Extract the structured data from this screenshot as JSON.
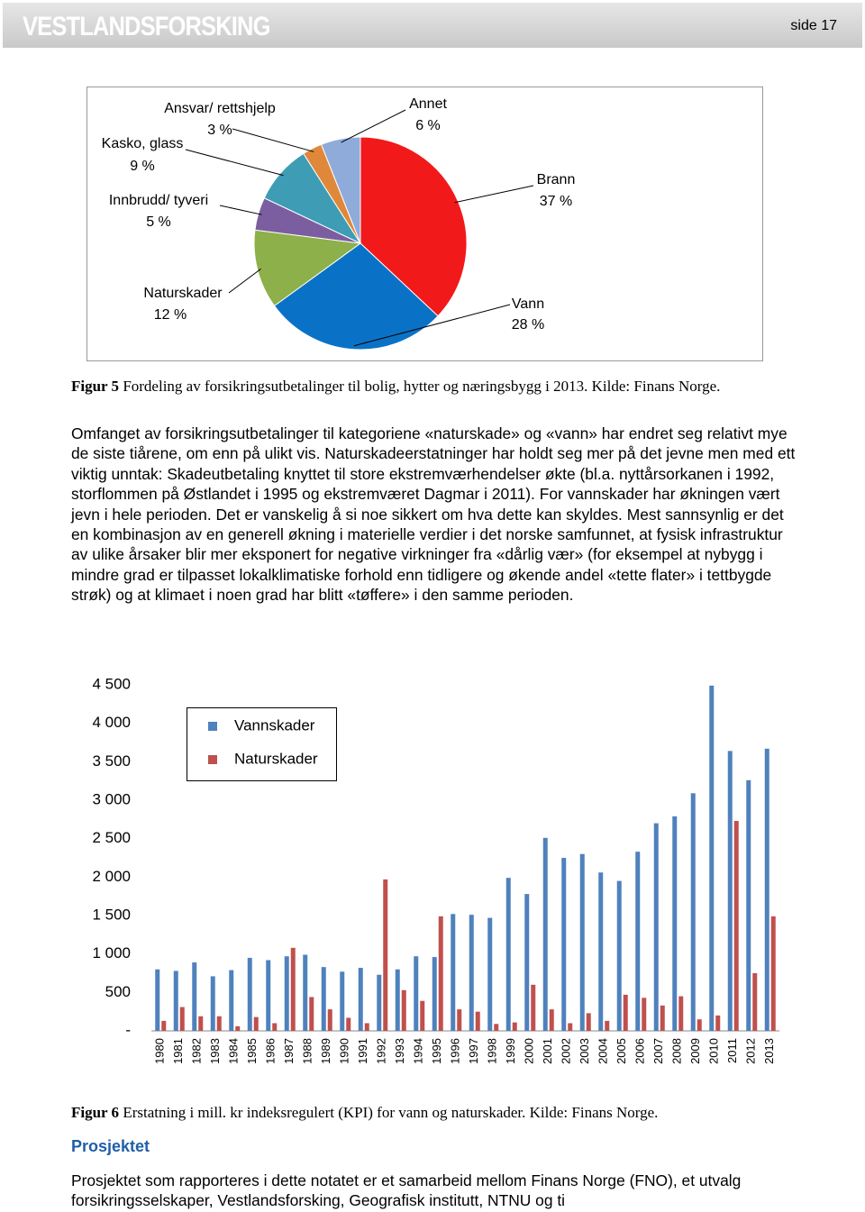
{
  "header": {
    "logo": "VESTLANDSFORSKING",
    "page": "side 17"
  },
  "chart_data": [
    {
      "type": "pie",
      "categories": [
        "Brann",
        "Vann",
        "Naturskader",
        "Innbrudd/ tyveri",
        "Kasko, glass",
        "Ansvar/ rettshjelp",
        "Annet"
      ],
      "values": [
        37,
        28,
        12,
        5,
        9,
        3,
        6
      ],
      "value_labels": [
        "37 %",
        "28 %",
        "12 %",
        "5 %",
        "9 %",
        "3 %",
        "6 %"
      ],
      "colors": [
        "#f2191b",
        "#0a72c6",
        "#8db04a",
        "#7b5e9f",
        "#3e9cb5",
        "#e0883a",
        "#8fabd9"
      ]
    },
    {
      "type": "bar",
      "categories": [
        "1980",
        "1981",
        "1982",
        "1983",
        "1984",
        "1985",
        "1986",
        "1987",
        "1988",
        "1989",
        "1990",
        "1991",
        "1992",
        "1993",
        "1994",
        "1995",
        "1996",
        "1997",
        "1998",
        "1999",
        "2000",
        "2001",
        "2002",
        "2003",
        "2004",
        "2005",
        "2006",
        "2007",
        "2008",
        "2009",
        "2010",
        "2011",
        "2012",
        "2013"
      ],
      "series": [
        {
          "name": "Vannskader",
          "color": "#4f81bd",
          "values": [
            800,
            780,
            890,
            710,
            790,
            950,
            920,
            970,
            990,
            830,
            770,
            820,
            730,
            800,
            970,
            960,
            1520,
            1510,
            1470,
            1990,
            1780,
            2510,
            2250,
            2300,
            2060,
            1950,
            2330,
            2700,
            2790,
            3090,
            4490,
            3640,
            3260,
            3670
          ]
        },
        {
          "name": "Naturskader",
          "color": "#c0504d",
          "values": [
            130,
            310,
            190,
            190,
            60,
            180,
            100,
            1080,
            440,
            280,
            170,
            100,
            1970,
            530,
            390,
            1490,
            280,
            250,
            90,
            110,
            600,
            280,
            100,
            230,
            130,
            470,
            430,
            330,
            450,
            150,
            200,
            2730,
            750,
            1490
          ]
        }
      ],
      "ylim": [
        0,
        4500
      ],
      "yticks": [
        {
          "value": 0,
          "label": "-"
        },
        500,
        {
          "value": 1000,
          "label": "1 000"
        },
        {
          "value": 1500,
          "label": "1 500"
        },
        {
          "value": 2000,
          "label": "2 000"
        },
        {
          "value": 2500,
          "label": "2 500"
        },
        {
          "value": 3000,
          "label": "3 000"
        },
        {
          "value": 3500,
          "label": "3 500"
        },
        {
          "value": 4000,
          "label": "4 000"
        },
        {
          "value": 4500,
          "label": "4 500"
        }
      ],
      "legend": "top-left"
    }
  ],
  "figure5": {
    "label": "Figur 5",
    "text": "Fordeling av forsikringsutbetalinger til bolig, hytter og næringsbygg i 2013. Kilde: Finans Norge."
  },
  "paragraph1": "Omfanget av forsikringsutbetalinger til kategoriene «naturskade» og «vann» har endret seg relativt mye de siste tiårene, om enn på ulikt vis. Naturskadeerstatninger har holdt seg mer på det jevne men med ett viktig unntak: Skadeutbetaling knyttet til store ekstremværhendelser økte (bl.a. nyttårsorkanen i 1992, storflommen på Østlandet i 1995 og ekstremværet Dagmar i 2011). For vannskader har økningen vært jevn i hele perioden. Det er vanskelig å si noe sikkert om hva dette kan skyldes. Mest sannsynlig er det en kombinasjon av en generell økning i materielle verdier i det norske samfunnet, at fysisk infrastruktur av ulike årsaker blir mer eksponert for negative virkninger fra «dårlig vær» (for eksempel at nybygg i mindre grad er tilpasset lokalklimatiske forhold enn tidligere og økende andel «tette flater» i tettbygde strøk) og at klimaet i noen grad har blitt «tøffere» i den samme perioden.",
  "figure6": {
    "label": "Figur 6",
    "text": "Erstatning i mill. kr indeksregulert (KPI) for vann og naturskader. Kilde: Finans Norge."
  },
  "section": {
    "heading": "Prosjektet",
    "text": "Prosjektet som rapporteres i dette notatet er et samarbeid mellom Finans Norge (FNO), et utvalg forsikringsselskaper, Vestlandsforsking, Geografisk institutt, NTNU og ti"
  }
}
